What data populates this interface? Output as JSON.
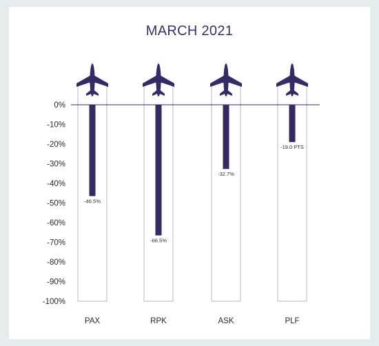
{
  "chart_data": {
    "type": "bar",
    "title": "MARCH 2021",
    "categories": [
      "PAX",
      "RPK",
      "ASK",
      "PLF"
    ],
    "values": [
      -46.5,
      -66.5,
      -32.7,
      -19.0
    ],
    "data_labels": [
      "-46.5%",
      "-66.5%",
      "-32.7%",
      "-19.0 PTS"
    ],
    "yticks": [
      "0%",
      "-10%",
      "-20%",
      "-30%",
      "-40%",
      "-50%",
      "-60%",
      "-70%",
      "-80%",
      "-90%",
      "-100%"
    ],
    "ylim": [
      -100,
      0
    ],
    "icon": "airplane-icon",
    "bar_color": "#352a64",
    "outline_color": "#b7b1d3"
  }
}
